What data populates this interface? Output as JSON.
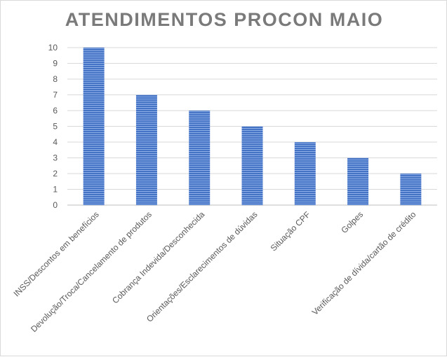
{
  "chart_data": {
    "type": "bar",
    "title": "ATENDIMENTOS PROCON MAIO",
    "categories": [
      "INSS/Descontos em benefícios",
      "Devolução/Troca/Cancelamento de produtos",
      "Cobrança Indevida/Desconhecida",
      "Orientações/Esclarecimentos de dúvidas",
      "Situação CPF",
      "Golpes",
      "Verificação de dívida/cartão de crédito"
    ],
    "values": [
      10,
      7,
      6,
      5,
      4,
      3,
      2
    ],
    "ylim": [
      0,
      10
    ],
    "yticks": [
      0,
      1,
      2,
      3,
      4,
      5,
      6,
      7,
      8,
      9,
      10
    ],
    "xlabel": "",
    "ylabel": "",
    "grid": true,
    "bar_color": "#4472c4",
    "bar_pattern": "horizontal-stripes"
  }
}
